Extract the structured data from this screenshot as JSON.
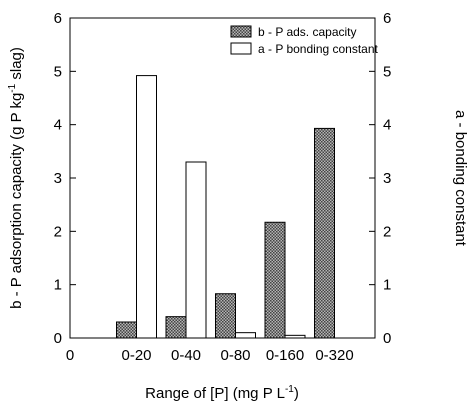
{
  "chart_data": {
    "type": "bar",
    "categories": [
      "0-20",
      "0-40",
      "0-80",
      "0-160",
      "0-320"
    ],
    "x_extra_tick": "0",
    "series": [
      {
        "name": "b - P ads. capacity",
        "axis": "left",
        "pattern": "checker",
        "values": [
          0.3,
          0.4,
          0.83,
          2.17,
          3.93
        ]
      },
      {
        "name": "a - P bonding constant",
        "axis": "right",
        "pattern": "white",
        "values": [
          4.92,
          3.3,
          0.1,
          0.05,
          null
        ]
      }
    ],
    "xlabel": {
      "main": "Range of [P] (mg P L",
      "sup": "-1",
      "tail": ")"
    },
    "ylabel_left": {
      "main": "b - P adsorption capacity (g P kg",
      "sup": "-1",
      "tail": " slag)"
    },
    "ylabel_right": "a - bonding constant",
    "ylim": [
      0,
      6
    ],
    "y_ticks": [
      "0",
      "1",
      "2",
      "3",
      "4",
      "5",
      "6"
    ],
    "legend_position": "top-right",
    "grid": false
  }
}
